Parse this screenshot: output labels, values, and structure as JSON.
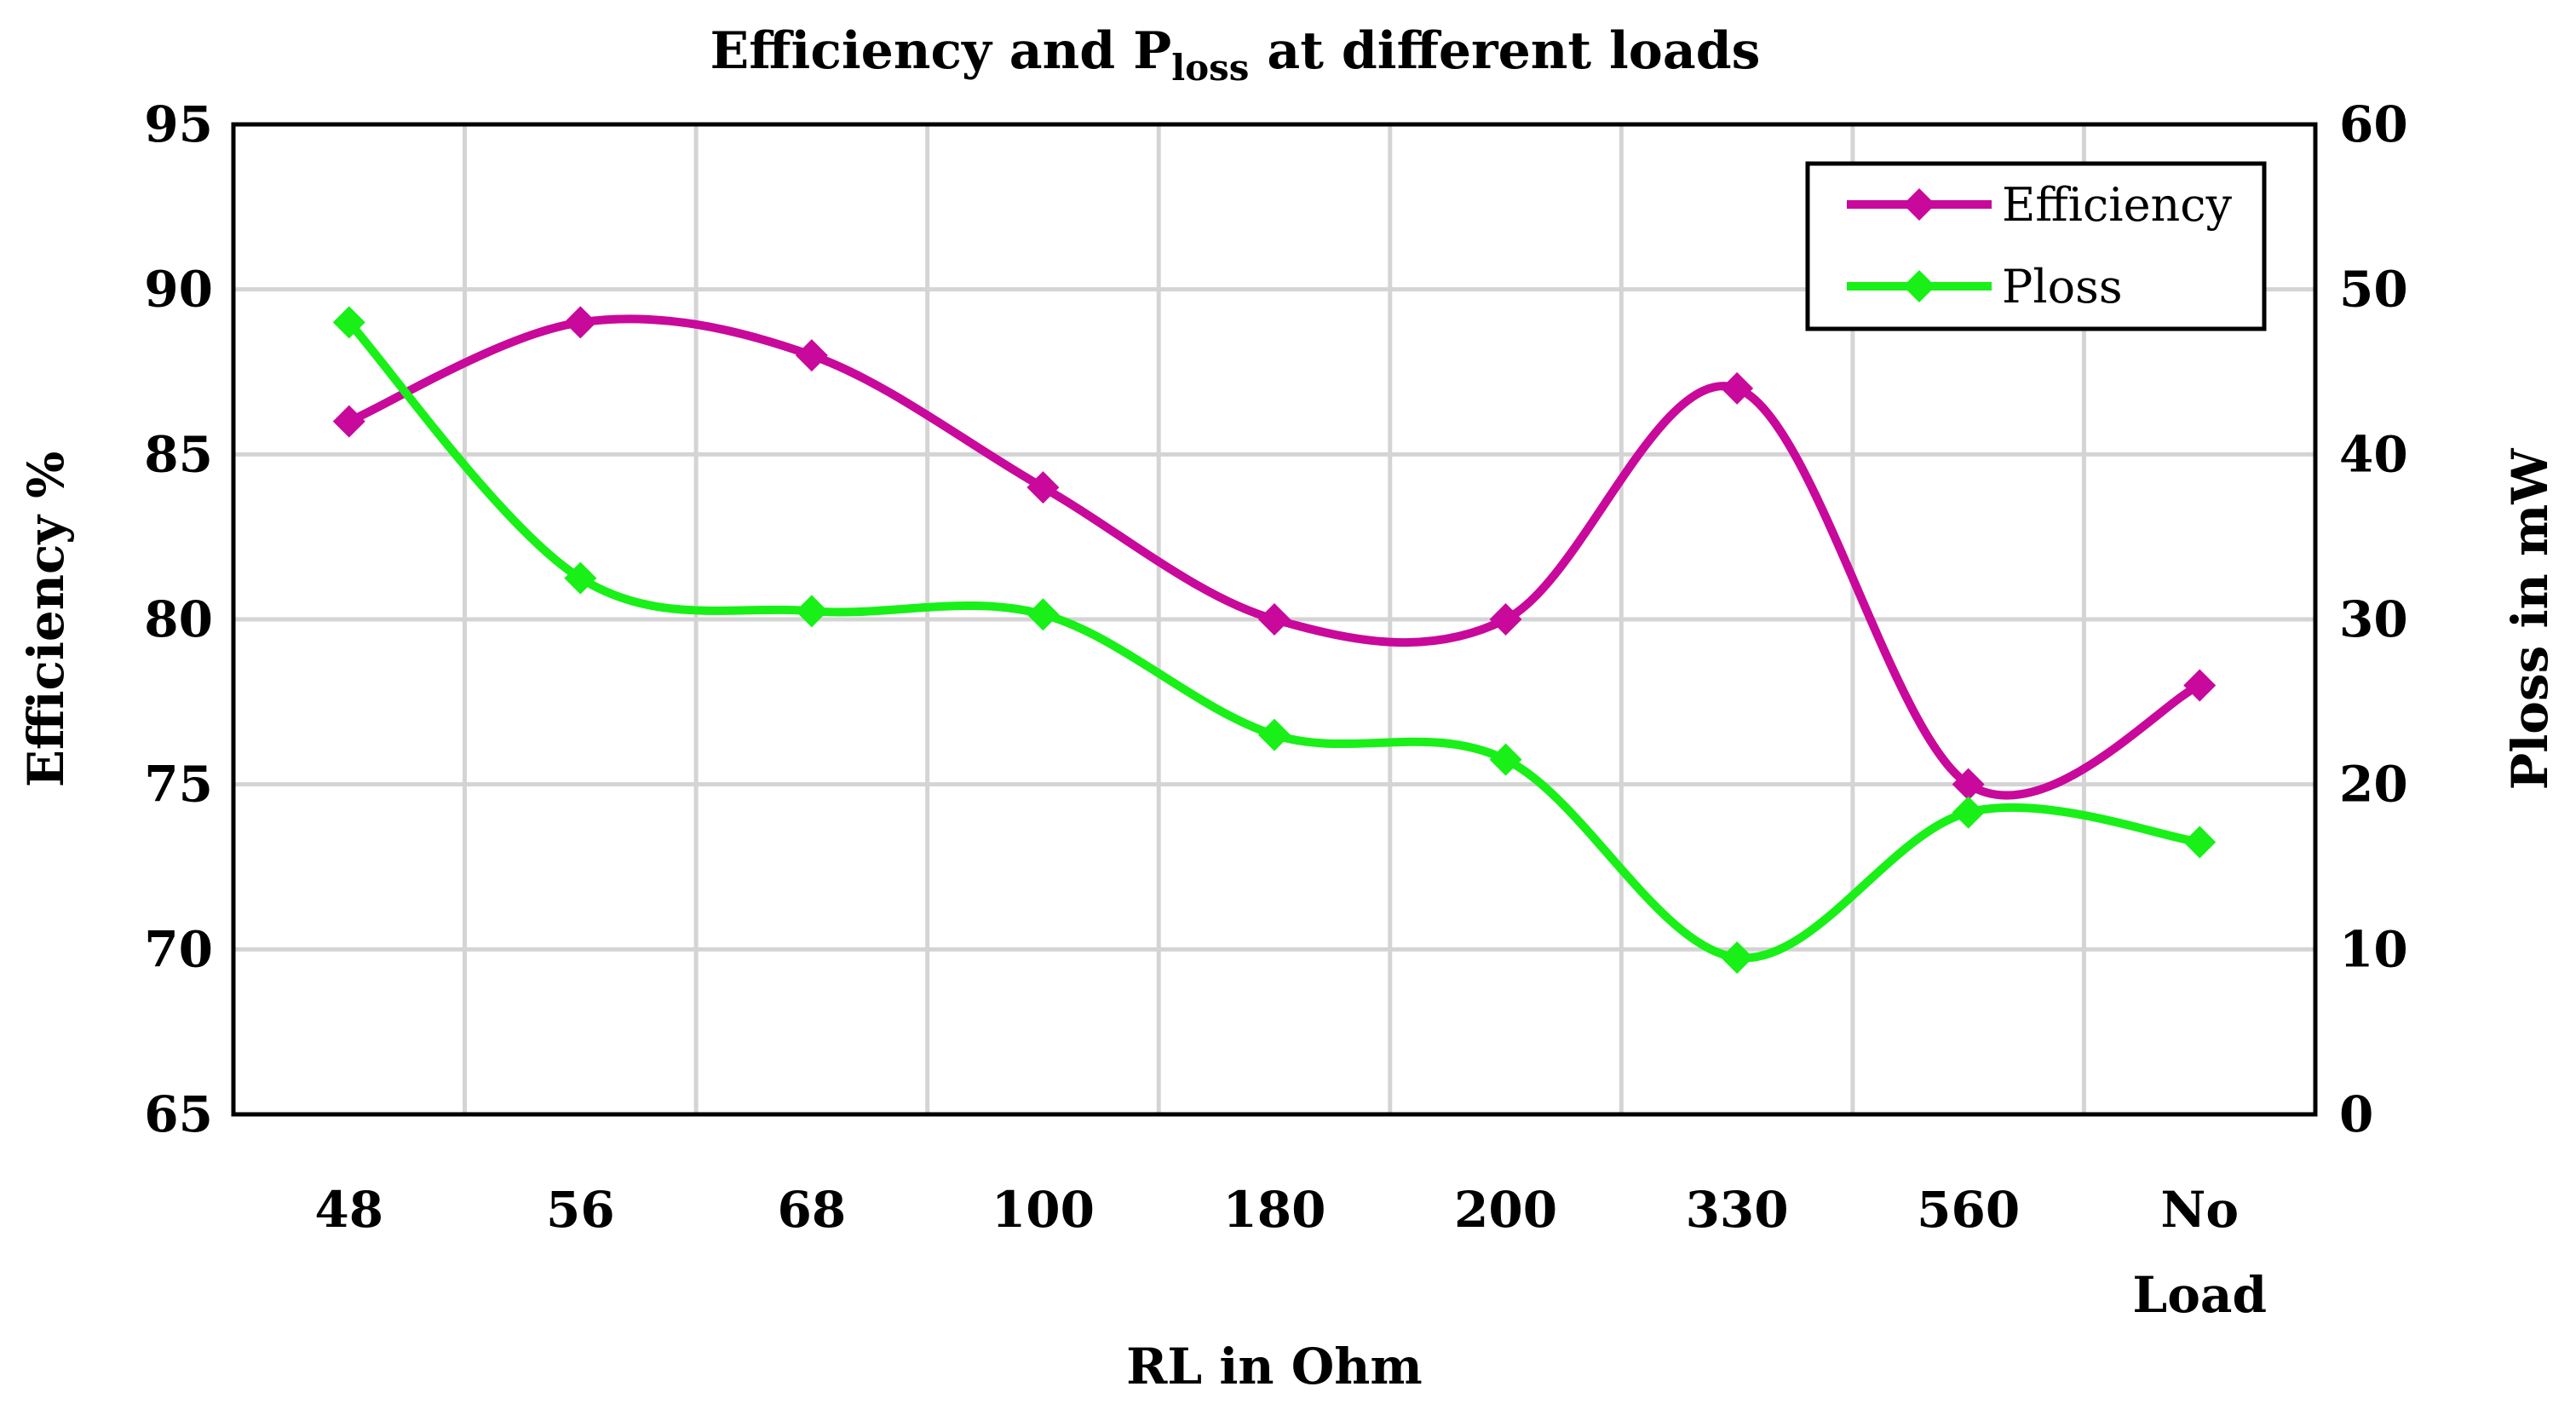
{
  "chart_data": {
    "type": "line",
    "title": "Efficiency and P",
    "title_subscript": "loss",
    "title_suffix": " at different loads",
    "xlabel": "RL in Ohm",
    "ylabel_left": "Efficiency  %",
    "ylabel_right": "Ploss in mW",
    "categories": [
      "48",
      "56",
      "68",
      "100",
      "180",
      "200",
      "330",
      "560",
      "No Load"
    ],
    "category_lines": [
      [
        "48"
      ],
      [
        "56"
      ],
      [
        "68"
      ],
      [
        "100"
      ],
      [
        "180"
      ],
      [
        "200"
      ],
      [
        "330"
      ],
      [
        "560"
      ],
      [
        "No",
        "Load"
      ]
    ],
    "y_left": {
      "min": 65,
      "max": 95,
      "step": 5,
      "ticks": [
        "65",
        "70",
        "75",
        "80",
        "85",
        "90",
        "95"
      ]
    },
    "y_right": {
      "min": 0,
      "max": 60,
      "step": 10,
      "ticks": [
        "0",
        "10",
        "20",
        "30",
        "40",
        "50",
        "60"
      ]
    },
    "grid": true,
    "legend_position": "top-right",
    "series": [
      {
        "name": "Efficiency",
        "axis": "left",
        "color": "#C8099B",
        "values": [
          86,
          89,
          88,
          84,
          80,
          80,
          87,
          75,
          78
        ]
      },
      {
        "name": "Ploss",
        "axis": "right",
        "color": "#18F018",
        "values": [
          48,
          32.5,
          30.5,
          30.3,
          23,
          21.5,
          9.5,
          18.3,
          16.5
        ]
      }
    ]
  }
}
